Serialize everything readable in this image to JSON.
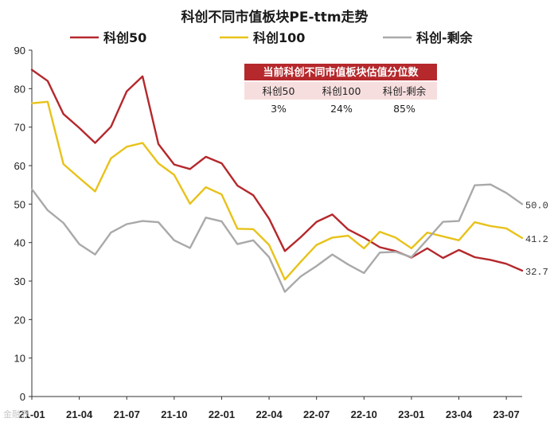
{
  "chart_data": {
    "type": "line",
    "title": "科创不同市值板块PE-ttm走势",
    "xlabel": "",
    "ylabel": "",
    "ylim": [
      0,
      90
    ],
    "yticks": [
      0,
      10,
      20,
      30,
      40,
      50,
      60,
      70,
      80,
      90
    ],
    "grid": false,
    "legend_position": "top",
    "x": [
      "21-01",
      "21-02",
      "21-03",
      "21-04",
      "21-05",
      "21-06",
      "21-07",
      "21-08",
      "21-09",
      "21-10",
      "21-11",
      "21-12",
      "22-01",
      "22-02",
      "22-03",
      "22-04",
      "22-05",
      "22-06",
      "22-07",
      "22-08",
      "22-09",
      "22-10",
      "22-11",
      "22-12",
      "23-01",
      "23-02",
      "23-03",
      "23-04",
      "23-05",
      "23-06",
      "23-07",
      "23-08"
    ],
    "xtick_labels": [
      "21-01",
      "21-04",
      "21-07",
      "21-10",
      "22-01",
      "22-04",
      "22-07",
      "22-10",
      "23-01",
      "23-04",
      "23-07"
    ],
    "series": [
      {
        "name": "科创50",
        "color": "#b5282c",
        "values": [
          84.9,
          82.0,
          73.4,
          69.8,
          65.9,
          70.1,
          79.3,
          83.2,
          65.6,
          60.3,
          59.1,
          62.3,
          60.6,
          54.8,
          52.3,
          46.2,
          37.8,
          41.4,
          45.4,
          47.3,
          43.4,
          41.3,
          38.8,
          37.8,
          36.1,
          38.5,
          36.0,
          38.1,
          36.2,
          35.5,
          34.5,
          32.7
        ],
        "end_label": "32.7"
      },
      {
        "name": "科创100",
        "color": "#e8c21a",
        "values": [
          76.2,
          76.6,
          60.4,
          56.8,
          53.3,
          61.9,
          64.9,
          65.9,
          60.6,
          57.6,
          50.1,
          54.4,
          52.5,
          43.6,
          43.5,
          39.4,
          30.4,
          35.0,
          39.4,
          41.3,
          41.8,
          38.5,
          42.8,
          41.3,
          38.5,
          42.6,
          41.6,
          40.6,
          45.3,
          44.3,
          43.7,
          41.2
        ],
        "end_label": "41.2"
      },
      {
        "name": "科创-剩余",
        "color": "#a9a9a9",
        "values": [
          53.9,
          48.4,
          45.1,
          39.6,
          36.9,
          42.6,
          44.8,
          45.6,
          45.3,
          40.6,
          38.6,
          46.5,
          45.5,
          39.6,
          40.6,
          36.2,
          27.2,
          31.2,
          33.9,
          36.9,
          34.3,
          32.1,
          37.4,
          37.6,
          36.2,
          40.8,
          45.4,
          45.6,
          54.9,
          55.1,
          52.9,
          50.0
        ],
        "end_label": "50.0"
      }
    ],
    "annotation_table": {
      "title": "当前科创不同市值板块估值分位数",
      "headers": [
        "科创50",
        "科创100",
        "科创-剩余"
      ],
      "values": [
        "3%",
        "24%",
        "85%"
      ]
    }
  },
  "watermark": "金融界"
}
